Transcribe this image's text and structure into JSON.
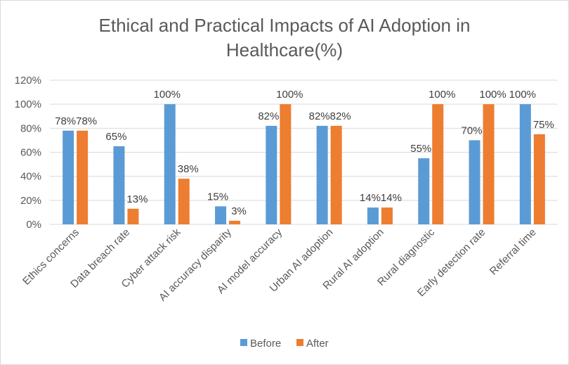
{
  "chart_data": {
    "type": "bar",
    "title": "Ethical and Practical Impacts of AI Adoption in Healthcare(%)",
    "title_lines": [
      "Ethical and Practical Impacts of AI Adoption in",
      "Healthcare(%)"
    ],
    "categories": [
      "Ethics concerns",
      "Data breach rate",
      "Cyber attack risk",
      "AI accuracy disparity",
      "AI model accuracy",
      "Urban AI adoption",
      "Rural AI adoption",
      "Rural diagnostic",
      "Early detection rate",
      "Referral time"
    ],
    "series": [
      {
        "name": "Before",
        "color": "#5B9BD5",
        "values": [
          78,
          65,
          100,
          15,
          82,
          82,
          14,
          55,
          70,
          100
        ]
      },
      {
        "name": "After",
        "color": "#ED7D31",
        "values": [
          78,
          13,
          38,
          3,
          100,
          82,
          14,
          100,
          100,
          75
        ]
      }
    ],
    "value_labels": {
      "Before": [
        "78%",
        "65%",
        "100%",
        "15%",
        "82%",
        "82%",
        "14%",
        "55%",
        "70%",
        "100%"
      ],
      "After": [
        "78%",
        "13%",
        "38%",
        "3%",
        "100%",
        "82%",
        "14%",
        "100%",
        "100%",
        "75%"
      ]
    },
    "yticks": [
      "0%",
      "20%",
      "40%",
      "60%",
      "80%",
      "100%",
      "120%"
    ],
    "ylim": [
      0,
      120
    ],
    "grid": true,
    "legend_position": "bottom",
    "xlabel": "",
    "ylabel": ""
  }
}
